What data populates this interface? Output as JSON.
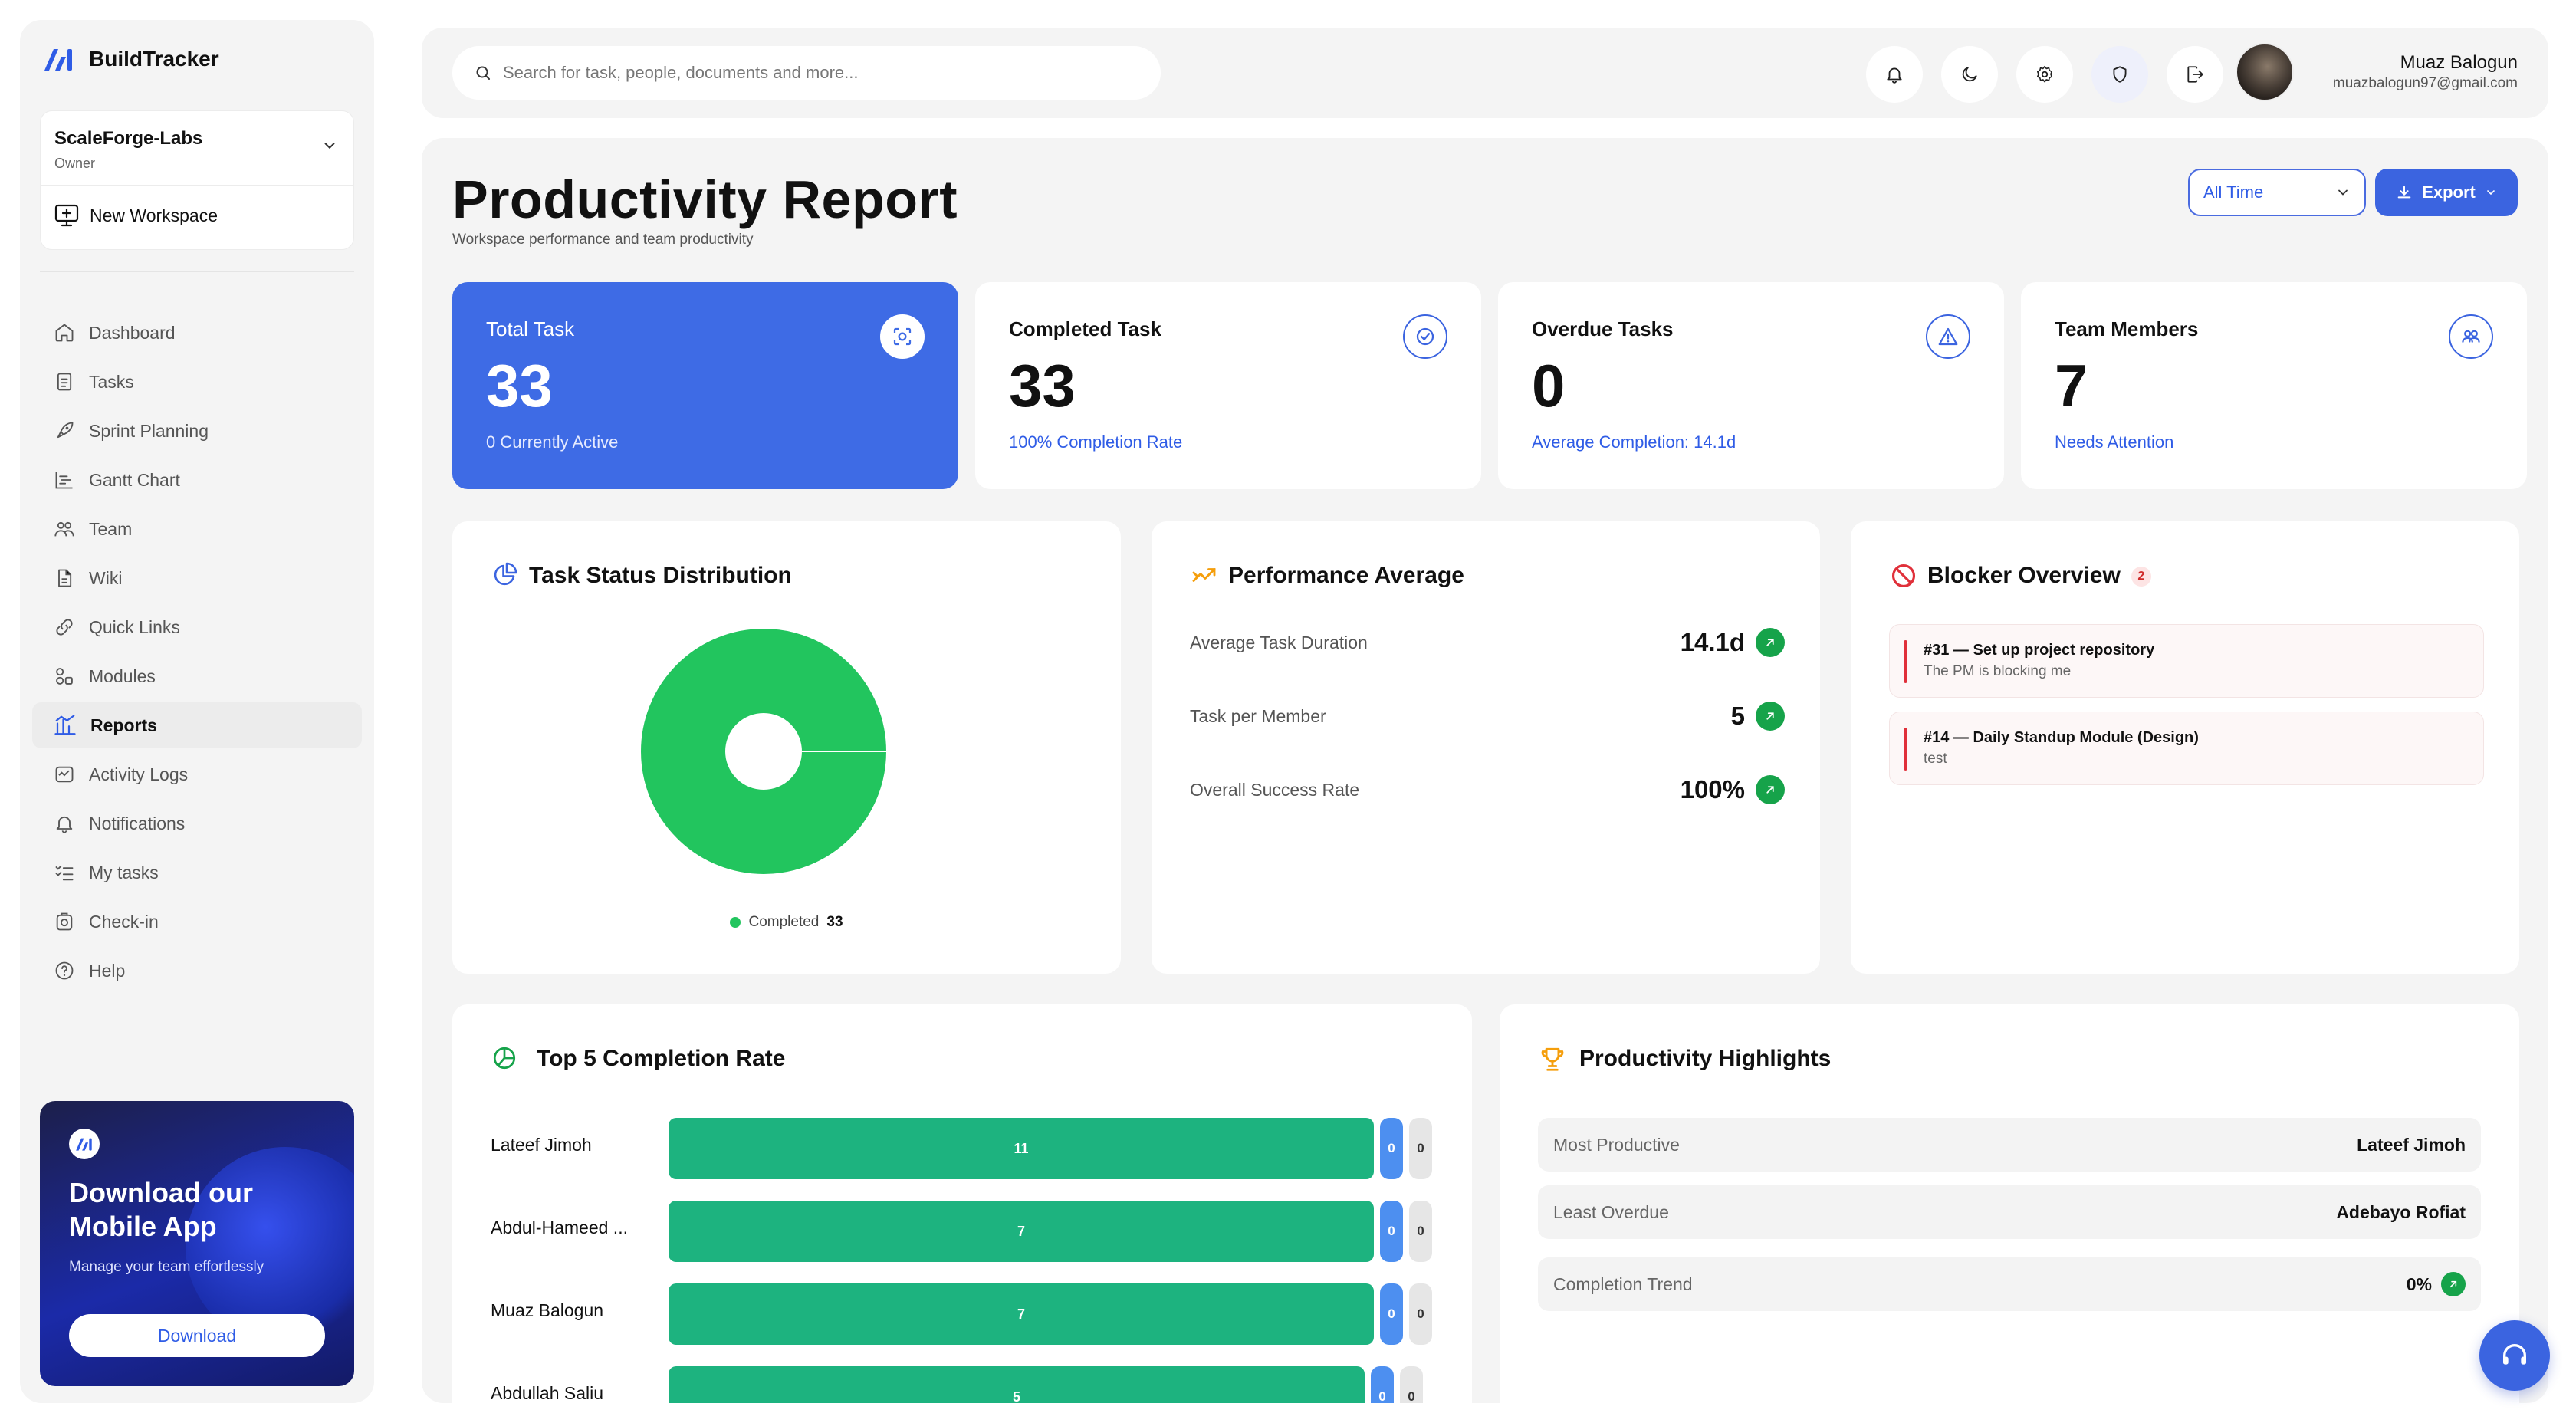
{
  "brand": {
    "name": "BuildTracker"
  },
  "workspace": {
    "name": "ScaleForge-Labs",
    "role": "Owner",
    "new_label": "New Workspace"
  },
  "sidebar": {
    "items": [
      {
        "label": "Dashboard",
        "icon": "home-icon"
      },
      {
        "label": "Tasks",
        "icon": "clipboard-icon"
      },
      {
        "label": "Sprint Planning",
        "icon": "rocket-icon"
      },
      {
        "label": "Gantt Chart",
        "icon": "gantt-icon"
      },
      {
        "label": "Team",
        "icon": "team-icon"
      },
      {
        "label": "Wiki",
        "icon": "document-icon"
      },
      {
        "label": "Quick Links",
        "icon": "link-icon"
      },
      {
        "label": "Modules",
        "icon": "modules-icon"
      },
      {
        "label": "Reports",
        "icon": "reports-icon",
        "active": true
      },
      {
        "label": "Activity Logs",
        "icon": "activity-icon"
      },
      {
        "label": "Notifications",
        "icon": "bell-icon"
      },
      {
        "label": "My tasks",
        "icon": "checklist-icon"
      },
      {
        "label": "Check-in",
        "icon": "camera-icon"
      },
      {
        "label": "Help",
        "icon": "help-icon"
      }
    ]
  },
  "promo": {
    "title": "Download our Mobile App",
    "subtitle": "Manage your team effortlessly",
    "button": "Download"
  },
  "search": {
    "placeholder": "Search for task, people, documents and more..."
  },
  "user": {
    "name": "Muaz Balogun",
    "email": "muazbalogun97@gmail.com"
  },
  "header": {
    "title": "Productivity Report",
    "subtitle": "Workspace performance and team productivity",
    "filter": "All Time",
    "export": "Export"
  },
  "stats": [
    {
      "label": "Total Task",
      "value": "33",
      "foot": "0 Currently Active"
    },
    {
      "label": "Completed Task",
      "value": "33",
      "foot": "100% Completion Rate"
    },
    {
      "label": "Overdue Tasks",
      "value": "0",
      "foot": "Average Completion: 14.1d"
    },
    {
      "label": "Team Members",
      "value": "7",
      "foot": "Needs Attention"
    }
  ],
  "status_panel": {
    "title": "Task Status Distribution"
  },
  "chart_data": {
    "type": "pie",
    "categories": [
      "Completed"
    ],
    "values": [
      33
    ],
    "colors": [
      "#22c55e"
    ]
  },
  "performance": {
    "title": "Performance Average",
    "rows": [
      {
        "label": "Average Task Duration",
        "value": "14.1d"
      },
      {
        "label": "Task per Member",
        "value": "5"
      },
      {
        "label": "Overall Success Rate",
        "value": "100%"
      }
    ]
  },
  "blockers": {
    "title": "Blocker Overview",
    "count": "2",
    "items": [
      {
        "title": "#31 — Set up project repository",
        "desc": "The PM is blocking me"
      },
      {
        "title": "#14 — Daily Standup Module (Design)",
        "desc": "test"
      }
    ]
  },
  "top5": {
    "title": "Top 5 Completion Rate",
    "rows": [
      {
        "name": "Lateef Jimoh",
        "completed": "11",
        "blue": "0",
        "grey": "0"
      },
      {
        "name": "Abdul-Hameed ...",
        "completed": "7",
        "blue": "0",
        "grey": "0"
      },
      {
        "name": "Muaz Balogun",
        "completed": "7",
        "blue": "0",
        "grey": "0"
      },
      {
        "name": "Abdullah Saliu",
        "completed": "5",
        "blue": "0",
        "grey": "0"
      }
    ]
  },
  "highlights": {
    "title": "Productivity Highlights",
    "rows": [
      {
        "label": "Most Productive",
        "value": "Lateef Jimoh"
      },
      {
        "label": "Least Overdue",
        "value": "Adebayo Rofiat"
      },
      {
        "label": "Completion Trend",
        "value": "0%"
      }
    ]
  },
  "colors": {
    "accent": "#3e6be5",
    "success": "#16a34a",
    "danger": "#e0303a",
    "bar": "#1db37f"
  }
}
